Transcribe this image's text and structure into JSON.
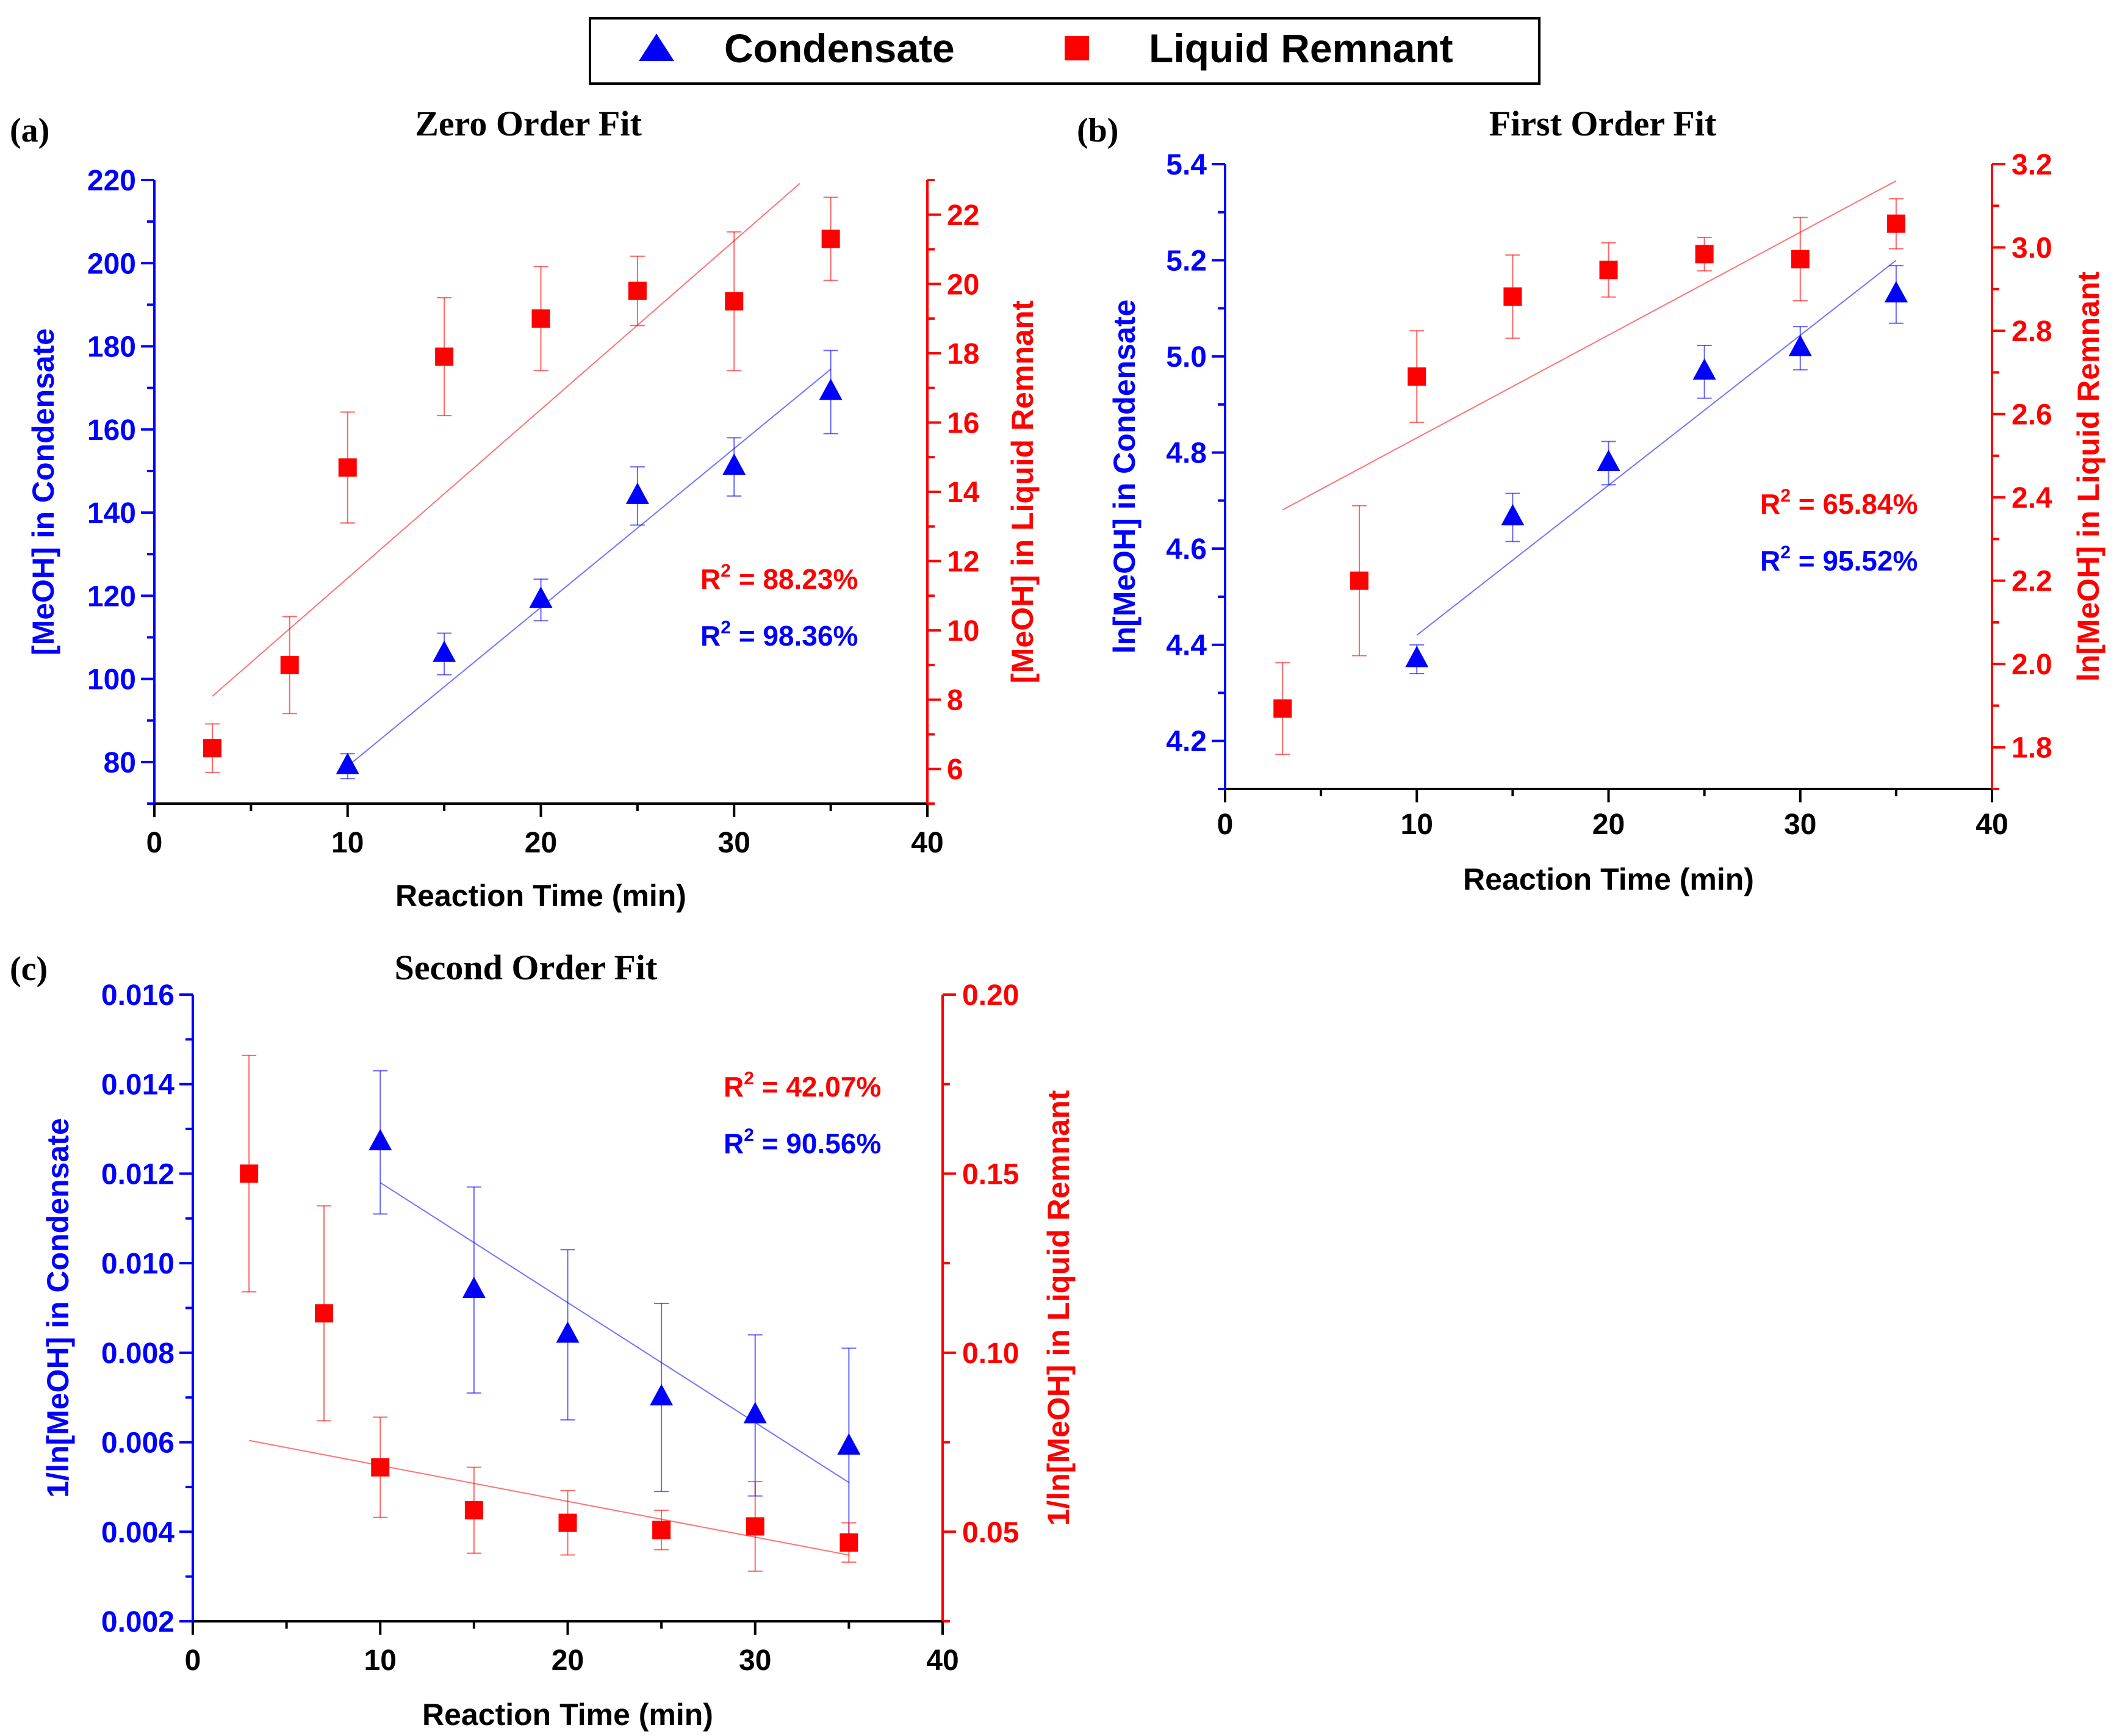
{
  "legend": {
    "items": [
      {
        "label": "Condensate",
        "marker": "triangle",
        "color": "#0000ff"
      },
      {
        "label": "Liquid Remnant",
        "marker": "square",
        "color": "#ff0000"
      }
    ]
  },
  "colors": {
    "condensate": "#0000ff",
    "remnant": "#ff0000",
    "axis_x": "#000000"
  },
  "chart_data": [
    {
      "type": "scatter",
      "panel_label": "(a)",
      "title": "Zero Order Fit",
      "xlabel": "Reaction Time (min)",
      "ylabel": "[MeOH] in Condensate",
      "y2label": "[MeOH] in Liquid Remnant",
      "xlim": [
        0,
        40
      ],
      "xticks": [
        0,
        10,
        20,
        30,
        40
      ],
      "xtick_labels": [
        "0",
        "10",
        "20",
        "30",
        "40"
      ],
      "ylim": [
        70,
        220
      ],
      "yticks": [
        80,
        100,
        120,
        140,
        160,
        180,
        200,
        220
      ],
      "ytick_labels": [
        "80",
        "100",
        "120",
        "140",
        "160",
        "180",
        "200",
        "220"
      ],
      "y2lim": [
        5,
        23
      ],
      "y2ticks": [
        6,
        8,
        10,
        12,
        14,
        16,
        18,
        20,
        22
      ],
      "y2tick_labels": [
        "6",
        "8",
        "10",
        "12",
        "14",
        "16",
        "18",
        "20",
        "22"
      ],
      "series": [
        {
          "name": "Condensate",
          "axis": "left",
          "marker": "triangle",
          "x": [
            10,
            15,
            20,
            25,
            30,
            35
          ],
          "y": [
            79,
            106,
            119,
            144,
            151,
            169
          ],
          "err": [
            3,
            5,
            5,
            7,
            7,
            10
          ],
          "fit": {
            "x": [
              10,
              35
            ],
            "y": [
              79,
              174.5
            ]
          }
        },
        {
          "name": "Liquid Remnant",
          "axis": "right",
          "marker": "square",
          "x": [
            3,
            7,
            10,
            15,
            20,
            25,
            30,
            35
          ],
          "y": [
            6.6,
            9.0,
            14.7,
            17.9,
            19.0,
            19.8,
            19.5,
            21.3
          ],
          "err": [
            0.7,
            1.4,
            1.6,
            1.7,
            1.5,
            1.0,
            2.0,
            1.2
          ],
          "fit": {
            "x": [
              3,
              33.4
            ],
            "y": [
              8.1,
              22.9
            ]
          }
        }
      ],
      "annotations": [
        {
          "base": "R",
          "sup": "2",
          "value": " = 88.23%",
          "series": "Liquid Remnant"
        },
        {
          "base": "R",
          "sup": "2",
          "value": " = 98.36%",
          "series": "Condensate"
        }
      ]
    },
    {
      "type": "scatter",
      "panel_label": "(b)",
      "title": "First Order Fit",
      "xlabel": "Reaction Time (min)",
      "ylabel": "ln[MeOH] in Condensate",
      "y2label": "ln[MeOH] in Liquid Remnant",
      "xlim": [
        0,
        40
      ],
      "xticks": [
        0,
        10,
        20,
        30,
        40
      ],
      "xtick_labels": [
        "0",
        "10",
        "20",
        "30",
        "40"
      ],
      "ylim": [
        4.1,
        5.4
      ],
      "yticks": [
        4.2,
        4.4,
        4.6,
        4.8,
        5.0,
        5.2,
        5.4
      ],
      "ytick_labels": [
        "4.2",
        "4.4",
        "4.6",
        "4.8",
        "5.0",
        "5.2",
        "5.4"
      ],
      "y2lim": [
        1.7,
        3.2
      ],
      "y2ticks": [
        1.8,
        2.0,
        2.2,
        2.4,
        2.6,
        2.8,
        3.0,
        3.2
      ],
      "y2tick_labels": [
        "1.8",
        "2.0",
        "2.2",
        "2.4",
        "2.6",
        "2.8",
        "3.0",
        "3.2"
      ],
      "series": [
        {
          "name": "Condensate",
          "axis": "left",
          "marker": "triangle",
          "x": [
            10,
            15,
            20,
            25,
            30,
            35
          ],
          "y": [
            4.37,
            4.665,
            4.778,
            4.968,
            5.017,
            5.129
          ],
          "err": [
            0.03,
            0.05,
            0.045,
            0.055,
            0.045,
            0.06
          ],
          "fit": {
            "x": [
              10,
              35
            ],
            "y": [
              4.42,
              5.2
            ]
          }
        },
        {
          "name": "Liquid Remnant",
          "axis": "right",
          "marker": "square",
          "x": [
            3,
            7,
            10,
            15,
            20,
            25,
            30,
            35
          ],
          "y": [
            1.893,
            2.2,
            2.69,
            2.882,
            2.946,
            2.984,
            2.972,
            3.057
          ],
          "err": [
            0.11,
            0.18,
            0.11,
            0.1,
            0.065,
            0.04,
            0.1,
            0.06
          ],
          "fit": {
            "x": [
              3,
              35
            ],
            "y": [
              2.37,
              3.16
            ]
          }
        }
      ],
      "annotations": [
        {
          "base": "R",
          "sup": "2",
          "value": " = 65.84%",
          "series": "Liquid Remnant"
        },
        {
          "base": "R",
          "sup": "2",
          "value": " = 95.52%",
          "series": "Condensate"
        }
      ]
    },
    {
      "type": "scatter",
      "panel_label": "(c)",
      "title": "Second Order Fit",
      "xlabel": "Reaction Time (min)",
      "ylabel": "1/ln[MeOH] in Condensate",
      "y2label": "1/ln[MeOH] in Liquid Remnant",
      "xlim": [
        0,
        40
      ],
      "xticks": [
        0,
        10,
        20,
        30,
        40
      ],
      "xtick_labels": [
        "0",
        "10",
        "20",
        "30",
        "40"
      ],
      "ylim": [
        0.002,
        0.016
      ],
      "yticks": [
        0.002,
        0.004,
        0.006,
        0.008,
        0.01,
        0.012,
        0.014,
        0.016
      ],
      "ytick_labels": [
        "0.002",
        "0.004",
        "0.006",
        "0.008",
        "0.010",
        "0.012",
        "0.014",
        "0.016"
      ],
      "y2lim": [
        0.025,
        0.2
      ],
      "y2ticks": [
        0.05,
        0.1,
        0.15,
        0.2
      ],
      "y2tick_labels": [
        "0.05",
        "0.10",
        "0.15",
        "0.20"
      ],
      "series": [
        {
          "name": "Condensate",
          "axis": "left",
          "marker": "triangle",
          "x": [
            10,
            15,
            20,
            25,
            30,
            35
          ],
          "y": [
            0.0127,
            0.0094,
            0.0084,
            0.007,
            0.0066,
            0.0059
          ],
          "err": [
            0.0016,
            0.0023,
            0.0019,
            0.0021,
            0.0018,
            0.0022
          ],
          "fit": {
            "x": [
              10,
              35
            ],
            "y": [
              0.0118,
              0.0051
            ]
          }
        },
        {
          "name": "Liquid Remnant",
          "axis": "right",
          "marker": "square",
          "x": [
            3,
            7,
            10,
            15,
            20,
            25,
            30,
            35
          ],
          "y": [
            0.15,
            0.111,
            0.068,
            0.056,
            0.0525,
            0.0505,
            0.0515,
            0.047
          ],
          "err": [
            0.033,
            0.03,
            0.014,
            0.012,
            0.009,
            0.0055,
            0.0125,
            0.0055
          ],
          "fit": {
            "x": [
              3,
              35
            ],
            "y": [
              0.0755,
              0.0435
            ]
          }
        }
      ],
      "annotations": [
        {
          "base": "R",
          "sup": "2",
          "value": " = 42.07%",
          "series": "Liquid Remnant"
        },
        {
          "base": "R",
          "sup": "2",
          "value": " = 90.56%",
          "series": "Condensate"
        }
      ]
    }
  ]
}
